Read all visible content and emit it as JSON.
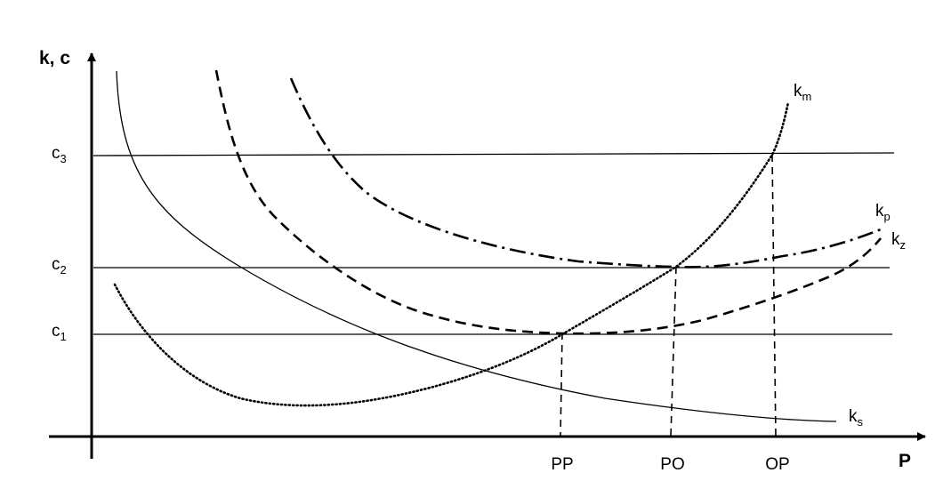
{
  "chart_data": {
    "type": "line",
    "title": "",
    "ylabel": "k, c",
    "xlabel": "P",
    "x_ticks": [
      "PP",
      "PO",
      "OP"
    ],
    "y_levels": [
      {
        "base": "c",
        "sub": "1"
      },
      {
        "base": "c",
        "sub": "2"
      },
      {
        "base": "c",
        "sub": "3"
      }
    ],
    "curves": [
      {
        "key": "ks",
        "base": "k",
        "sub": "s",
        "style": "solid"
      },
      {
        "key": "km",
        "base": "k",
        "sub": "m",
        "style": "dotted"
      },
      {
        "key": "kz",
        "base": "k",
        "sub": "z",
        "style": "dashed"
      },
      {
        "key": "kp",
        "base": "k",
        "sub": "p",
        "style": "dash-dot"
      }
    ],
    "grid": false,
    "legend": "none"
  }
}
